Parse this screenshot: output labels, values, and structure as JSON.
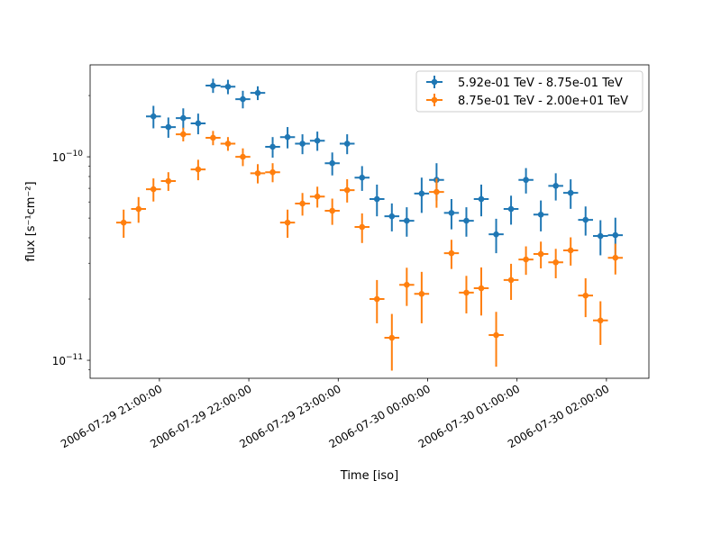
{
  "chart_data": {
    "type": "scatter",
    "title": "",
    "xlabel": "Time [iso]",
    "ylabel": "flux [s⁻¹cm⁻²]",
    "yscale": "log",
    "ylim": [
      8.16e-12,
      2.83e-10
    ],
    "xlim": [
      "2006-07-29T20:13:30",
      "2006-07-30T02:28:30"
    ],
    "grid": false,
    "legend_position": "top-right",
    "x_tick_labels": [
      "2006-07-29 21:00:00",
      "2006-07-29 22:00:00",
      "2006-07-29 23:00:00",
      "2006-07-30 00:00:00",
      "2006-07-30 01:00:00",
      "2006-07-30 02:00:00"
    ],
    "x_ticks": [
      "2006-07-29T21:00:00",
      "2006-07-29T22:00:00",
      "2006-07-29T23:00:00",
      "2006-07-30T00:00:00",
      "2006-07-30T01:00:00",
      "2006-07-30T02:00:00"
    ],
    "y_tick_labels": [
      {
        "mantissa": "10",
        "exp": "−10",
        "value": 1e-10
      },
      {
        "mantissa": "10",
        "exp": "−11",
        "value": 1e-11
      }
    ],
    "xerr_minutes": 5,
    "x": [
      "2006-07-29T20:36",
      "2006-07-29T20:46",
      "2006-07-29T20:56",
      "2006-07-29T21:06",
      "2006-07-29T21:16",
      "2006-07-29T21:26",
      "2006-07-29T21:36",
      "2006-07-29T21:46",
      "2006-07-29T21:56",
      "2006-07-29T22:06",
      "2006-07-29T22:16",
      "2006-07-29T22:26",
      "2006-07-29T22:36",
      "2006-07-29T22:46",
      "2006-07-29T22:56",
      "2006-07-29T23:06",
      "2006-07-29T23:16",
      "2006-07-29T23:26",
      "2006-07-29T23:36",
      "2006-07-29T23:46",
      "2006-07-29T23:56",
      "2006-07-30T00:06",
      "2006-07-30T00:16",
      "2006-07-30T00:26",
      "2006-07-30T00:36",
      "2006-07-30T00:46",
      "2006-07-30T00:56",
      "2006-07-30T01:06",
      "2006-07-30T01:16",
      "2006-07-30T01:26",
      "2006-07-30T01:36",
      "2006-07-30T01:46",
      "2006-07-30T01:56",
      "2006-07-30T02:06"
    ],
    "series": [
      {
        "name": "5.92e-01 TeV - 8.75e-01 TeV",
        "color": "#1f77b4",
        "values": [
          null,
          null,
          1.58e-10,
          1.4e-10,
          1.55e-10,
          1.46e-10,
          2.24e-10,
          2.21e-10,
          1.92e-10,
          2.06e-10,
          1.12e-10,
          1.25e-10,
          1.16e-10,
          1.2e-10,
          9.3e-11,
          1.16e-10,
          7.9e-11,
          6.2e-11,
          5.1e-11,
          4.85e-11,
          6.6e-11,
          7.7e-11,
          5.3e-11,
          4.85e-11,
          6.2e-11,
          4.16e-11,
          5.54e-11,
          7.7e-11,
          5.2e-11,
          7.2e-11,
          6.65e-11,
          4.9e-11,
          4.08e-11,
          4.12e-11
        ],
        "yerr": [
          null,
          null,
          2e-11,
          1.6e-11,
          1.8e-11,
          1.7e-11,
          1.8e-11,
          1.8e-11,
          1.9e-11,
          1.6e-11,
          1.3e-11,
          1.5e-11,
          1.3e-11,
          1.3e-11,
          1.2e-11,
          1.3e-11,
          1.1e-11,
          1.1e-11,
          8e-12,
          8e-12,
          1.3e-11,
          1.6e-11,
          9e-12,
          8e-12,
          1.1e-11,
          8e-12,
          9e-12,
          1.1e-11,
          9e-12,
          1.1e-11,
          1.1e-11,
          8e-12,
          8e-12,
          9e-12
        ]
      },
      {
        "name": "8.75e-01 TeV - 2.00e+01 TeV",
        "color": "#ff7f0e",
        "values": [
          4.75e-11,
          5.54e-11,
          6.93e-11,
          7.6e-11,
          1.29e-10,
          8.67e-11,
          1.24e-10,
          1.16e-10,
          1e-10,
          8.3e-11,
          8.4e-11,
          4.75e-11,
          5.89e-11,
          6.38e-11,
          5.43e-11,
          6.86e-11,
          4.52e-11,
          2e-11,
          1.29e-11,
          2.35e-11,
          2.12e-11,
          6.72e-11,
          3.36e-11,
          2.15e-11,
          2.26e-11,
          1.33e-11,
          2.48e-11,
          3.13e-11,
          3.33e-11,
          3.03e-11,
          3.47e-11,
          2.08e-11,
          1.57e-11,
          3.19e-11
        ],
        "yerr": [
          7.5e-12,
          8e-12,
          9e-12,
          8e-12,
          1e-11,
          1e-11,
          1e-11,
          9e-12,
          1e-11,
          9e-12,
          9e-12,
          7.5e-12,
          7.5e-12,
          7.5e-12,
          8e-12,
          9e-12,
          7.5e-12,
          4.8e-12,
          4e-12,
          5e-12,
          6e-12,
          1.1e-11,
          5.5e-12,
          4.5e-12,
          6e-12,
          4e-12,
          5e-12,
          5e-12,
          5e-12,
          5e-12,
          5.5e-12,
          4.5e-12,
          3.8e-12,
          5.5e-12
        ]
      }
    ]
  }
}
